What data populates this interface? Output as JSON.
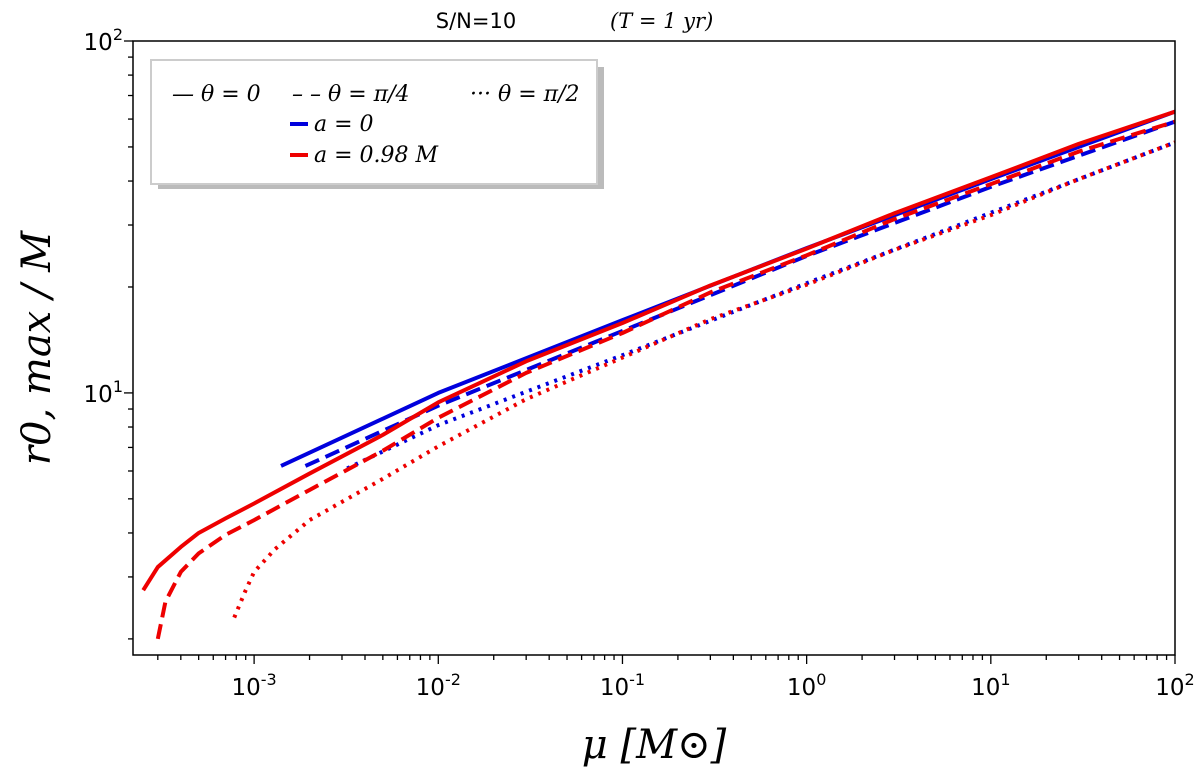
{
  "chart_data": {
    "type": "line",
    "title": "S/N=10",
    "title_math": "(T = 1 yr)",
    "xlabel": "μ [M⊙]",
    "ylabel": "r0, max / M",
    "xscale": "log",
    "yscale": "log",
    "xlim": [
      0.00022,
      100
    ],
    "ylim": [
      1.8,
      100
    ],
    "xticks": [
      {
        "value": 0.001,
        "base": "10",
        "exp": "-3"
      },
      {
        "value": 0.01,
        "base": "10",
        "exp": "-2"
      },
      {
        "value": 0.1,
        "base": "10",
        "exp": "-1"
      },
      {
        "value": 1,
        "base": "10",
        "exp": "0"
      },
      {
        "value": 10,
        "base": "10",
        "exp": "1"
      },
      {
        "value": 100,
        "base": "10",
        "exp": "2"
      }
    ],
    "yticks": [
      {
        "value": 10,
        "base": "10",
        "exp": "1"
      },
      {
        "value": 100,
        "base": "10",
        "exp": "2"
      }
    ],
    "legend": {
      "placement": "top-left",
      "style_entries": [
        "— θ = 0",
        "– – θ = π/4",
        "··· θ = π/2"
      ],
      "color_entries": [
        {
          "label": "a = 0",
          "color": "#0000dd"
        },
        {
          "label": "a = 0.98 M",
          "color": "#ee0000"
        }
      ]
    },
    "series": [
      {
        "name": "a=0, θ=0",
        "color": "#0000dd",
        "style": "solid",
        "x": [
          0.0014,
          0.01,
          0.1,
          1,
          10,
          100
        ],
        "y": [
          6.2,
          10.0,
          16.1,
          25.8,
          40.5,
          63.0
        ]
      },
      {
        "name": "a=0, θ=π/4",
        "color": "#0000dd",
        "style": "dashed",
        "x": [
          0.0019,
          0.01,
          0.1,
          1,
          10,
          100
        ],
        "y": [
          6.2,
          9.2,
          15.0,
          24.5,
          38.5,
          59.0
        ]
      },
      {
        "name": "a=0, θ=π/2",
        "color": "#0000dd",
        "style": "dotted",
        "x": [
          0.0032,
          0.01,
          0.1,
          1,
          10,
          100
        ],
        "y": [
          6.1,
          8.1,
          12.8,
          20.5,
          32.5,
          51.5
        ]
      },
      {
        "name": "a=0.98M, θ=0",
        "color": "#ee0000",
        "style": "solid",
        "x": [
          0.00025,
          0.0003,
          0.0004,
          0.0005,
          0.0007,
          0.001,
          0.002,
          0.005,
          0.01,
          0.03,
          0.1,
          0.3,
          1,
          3,
          10,
          30,
          100
        ],
        "y": [
          2.75,
          3.2,
          3.65,
          4.0,
          4.4,
          4.85,
          5.9,
          7.6,
          9.4,
          12.3,
          15.8,
          20.2,
          25.7,
          32.4,
          41.0,
          51.0,
          63.0
        ]
      },
      {
        "name": "a=0.98M, θ=π/4",
        "color": "#ee0000",
        "style": "dashed",
        "x": [
          0.0003,
          0.00033,
          0.0004,
          0.0005,
          0.0007,
          0.001,
          0.002,
          0.005,
          0.01,
          0.03,
          0.1,
          0.3,
          1,
          3,
          10,
          30,
          100
        ],
        "y": [
          2.0,
          2.55,
          3.1,
          3.5,
          3.95,
          4.35,
          5.3,
          6.85,
          8.5,
          11.4,
          14.8,
          19.3,
          24.6,
          31.2,
          39.2,
          48.5,
          59.0
        ]
      },
      {
        "name": "a=0.98M, θ=π/2",
        "color": "#ee0000",
        "style": "dotted",
        "x": [
          0.00078,
          0.0009,
          0.001,
          0.0013,
          0.002,
          0.005,
          0.01,
          0.03,
          0.1,
          0.3,
          1,
          3,
          10,
          30,
          100
        ],
        "y": [
          2.3,
          2.75,
          3.1,
          3.6,
          4.35,
          5.7,
          7.05,
          9.6,
          12.6,
          16.2,
          20.3,
          25.5,
          32.0,
          40.5,
          51.5
        ]
      }
    ]
  }
}
